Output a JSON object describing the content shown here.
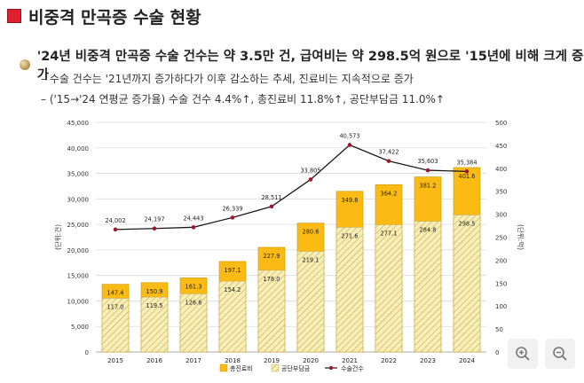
{
  "header": {
    "title": "비중격 만곡증 수술 현황",
    "bullet": "'24년 비중격 만곡증 수술 건수는 약 3.5만 건, 급여비는 약 298.5억 원으로 '15년에 비해 크게 증가",
    "sub1": "– 수술 건수는 '21년까지 증가하다가 이후 감소하는 추세, 진료비는 지속적으로 증가",
    "sub2": "– ('15→'24 연평균 증가율) 수술 건수 4.4%↑, 총진료비 11.8%↑, 공단부담금 11.0%↑"
  },
  "chart_data": {
    "type": "bar",
    "categories": [
      "2015",
      "2016",
      "2017",
      "2018",
      "2019",
      "2020",
      "2021",
      "2022",
      "2023",
      "2024"
    ],
    "series": [
      {
        "name": "총진료비",
        "kind": "bar-total",
        "axis": "right",
        "color": "#fbbb14",
        "values": [
          147.4,
          150.9,
          161.3,
          197.1,
          227.9,
          280.6,
          349.8,
          364.2,
          381.2,
          401.6
        ]
      },
      {
        "name": "공단부담금",
        "kind": "bar-inner",
        "axis": "right",
        "color": "#f6eaa8",
        "values": [
          117.0,
          119.5,
          126.6,
          154.2,
          178.0,
          219.1,
          271.6,
          277.1,
          284.8,
          298.5
        ]
      },
      {
        "name": "수술건수",
        "kind": "line",
        "axis": "left",
        "color": "#a01830",
        "values": [
          24002,
          24197,
          24443,
          26339,
          28511,
          33805,
          40573,
          37422,
          35603,
          35384
        ]
      }
    ],
    "left_ylabel": "(단위:건)",
    "right_ylabel": "(단위:억)",
    "left_ylim": [
      0,
      45000
    ],
    "left_ticks": [
      "0",
      "5,000",
      "10,000",
      "15,000",
      "20,000",
      "25,000",
      "30,000",
      "35,000",
      "40,000",
      "45,000"
    ],
    "right_ylim": [
      0,
      500
    ],
    "right_ticks": [
      "0",
      "50",
      "100",
      "150",
      "200",
      "250",
      "300",
      "350",
      "400",
      "450",
      "500"
    ],
    "legend_position": "bottom",
    "grid": true
  },
  "controls": {
    "zoom_in_icon": "zoom-in-icon",
    "zoom_out_icon": "zoom-out-icon"
  }
}
